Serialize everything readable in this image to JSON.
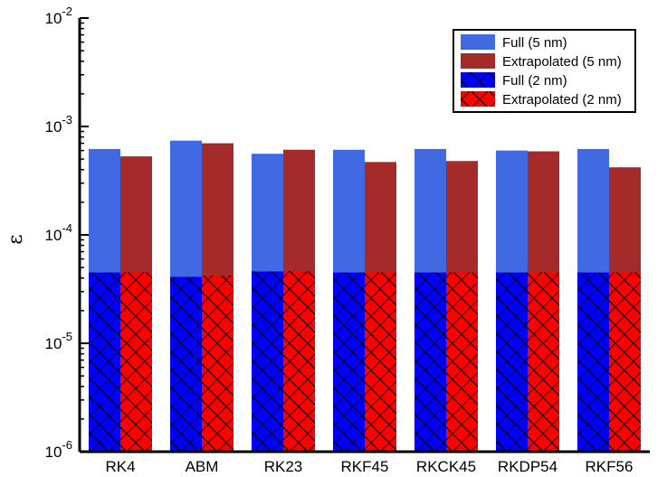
{
  "chart_data": {
    "type": "bar",
    "ylabel": "ε",
    "yscale": "log",
    "ylim": [
      1e-06,
      0.01
    ],
    "ytick_values": [
      1e-06,
      1e-05,
      0.0001,
      0.001,
      0.01
    ],
    "ytick_exponents": [
      "-6",
      "-5",
      "-4",
      "-3",
      "-2"
    ],
    "ytick_base": "10",
    "categories": [
      "RK4",
      "ABM",
      "RK23",
      "RKF45",
      "RKCK45",
      "RKDP54",
      "RKF56"
    ],
    "series": [
      {
        "name": "Full (5 nm)",
        "color": "#4169E1",
        "hatch": false,
        "slot": 0,
        "values": [
          0.00062,
          0.00074,
          0.00056,
          0.00061,
          0.00062,
          0.0006,
          0.00062
        ]
      },
      {
        "name": "Extrapolated (5 nm)",
        "color": "#A52A2A",
        "hatch": false,
        "slot": 1,
        "values": [
          0.00053,
          0.0007,
          0.00061,
          0.00047,
          0.00048,
          0.00059,
          0.00042
        ]
      },
      {
        "name": "Full (2 nm)",
        "color": "#0000FF",
        "hatch": true,
        "slot": 0,
        "values": [
          4.5e-05,
          4.1e-05,
          4.6e-05,
          4.5e-05,
          4.5e-05,
          4.5e-05,
          4.5e-05
        ]
      },
      {
        "name": "Extrapolated (2 nm)",
        "color": "#FF0000",
        "hatch": true,
        "slot": 1,
        "values": [
          4.5e-05,
          4.2e-05,
          4.6e-05,
          4.5e-05,
          4.5e-05,
          4.5e-05,
          4.5e-05
        ]
      }
    ],
    "legend_position": "top-right",
    "grid": false
  }
}
